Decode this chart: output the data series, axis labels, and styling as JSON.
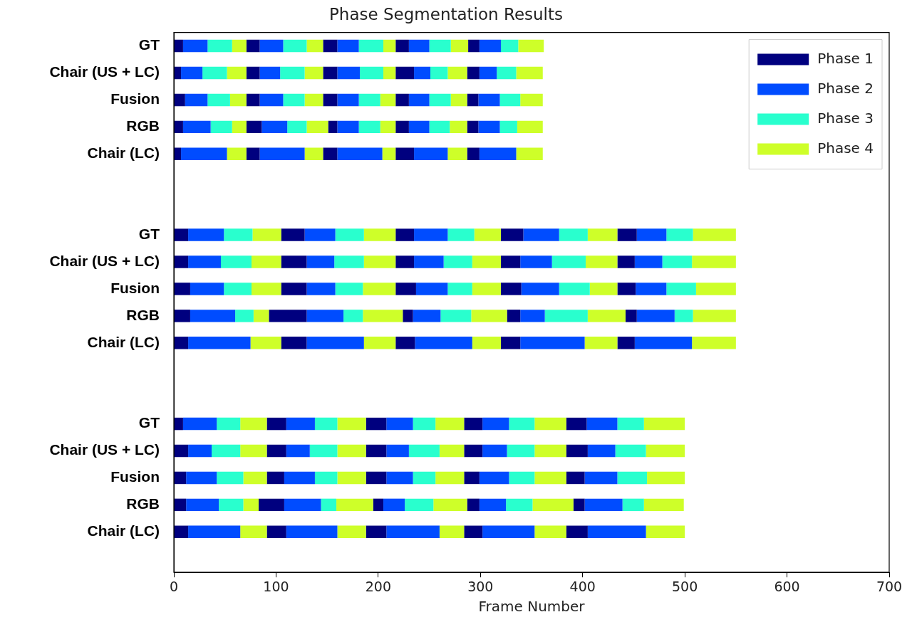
{
  "chart_data": {
    "type": "bar",
    "orientation": "horizontal",
    "stacked": true,
    "title": "Phase Segmentation Results",
    "xlabel": "Frame Number",
    "categories": [
      "GT",
      "Chair (US + LC)",
      "Fusion",
      "RGB",
      "Chair (LC)",
      null,
      null,
      "GT",
      "Chair (US + LC)",
      "Fusion",
      "RGB",
      "Chair (LC)",
      null,
      null,
      "GT",
      "Chair (US + LC)",
      "Fusion",
      "RGB",
      "Chair (LC)",
      null
    ],
    "xlim": [
      0,
      700
    ],
    "xticks": [
      0,
      100,
      200,
      300,
      400,
      500,
      600,
      700
    ],
    "grid": false,
    "legend": "top right",
    "series": [
      {
        "name": "Phase 1",
        "color": "#00007f",
        "values": [
          9,
          7,
          11,
          9,
          7,
          null,
          null,
          14,
          14,
          16,
          16,
          14,
          null,
          null,
          9,
          14,
          12,
          12,
          14,
          null
        ]
      },
      {
        "name": "Phase 2",
        "color": "#004cff",
        "values": [
          24,
          21,
          22,
          27,
          45,
          null,
          null,
          35,
          32,
          33,
          44,
          61,
          null,
          null,
          33,
          23,
          30,
          32,
          51,
          null
        ]
      },
      {
        "name": "Phase 3",
        "color": "#29ffce",
        "values": [
          24,
          24,
          22,
          21,
          null,
          null,
          null,
          28,
          30,
          27,
          18,
          null,
          null,
          null,
          23,
          28,
          26,
          24,
          null,
          null
        ]
      },
      {
        "name": "Phase 4",
        "color": "#ceff29",
        "values": [
          14,
          19,
          16,
          14,
          19,
          null,
          null,
          28,
          29,
          29,
          15,
          30,
          null,
          null,
          26,
          26,
          23,
          15,
          26,
          null
        ]
      },
      {
        "color": "#00007f",
        "values": [
          13,
          13,
          13,
          15,
          13,
          null,
          null,
          23,
          25,
          25,
          37,
          25,
          null,
          null,
          19,
          19,
          17,
          25,
          19,
          null
        ]
      },
      {
        "color": "#004cff",
        "values": [
          23,
          20,
          23,
          25,
          44,
          null,
          null,
          30,
          27,
          28,
          36,
          56,
          null,
          null,
          28,
          23,
          30,
          36,
          50,
          null
        ]
      },
      {
        "color": "#29ffce",
        "values": [
          23,
          24,
          21,
          19,
          null,
          null,
          null,
          28,
          29,
          27,
          19,
          null,
          null,
          null,
          22,
          27,
          22,
          15,
          null,
          null
        ]
      },
      {
        "color": "#ceff29",
        "values": [
          16,
          18,
          18,
          21,
          18,
          null,
          null,
          31,
          31,
          32,
          39,
          31,
          null,
          null,
          28,
          28,
          28,
          36,
          28,
          null
        ]
      },
      {
        "color": "#00007f",
        "values": [
          14,
          14,
          14,
          9,
          14,
          null,
          null,
          18,
          18,
          20,
          10,
          19,
          null,
          null,
          20,
          20,
          20,
          10,
          20,
          null
        ]
      },
      {
        "color": "#004cff",
        "values": [
          21,
          22,
          21,
          21,
          44,
          null,
          null,
          33,
          29,
          31,
          27,
          56,
          null,
          null,
          26,
          22,
          26,
          21,
          52,
          null
        ]
      },
      {
        "color": "#29ffce",
        "values": [
          24,
          23,
          21,
          21,
          null,
          null,
          null,
          26,
          28,
          24,
          30,
          null,
          null,
          null,
          22,
          30,
          22,
          28,
          null,
          null
        ]
      },
      {
        "color": "#ceff29",
        "values": [
          12,
          12,
          15,
          15,
          13,
          null,
          null,
          26,
          28,
          28,
          35,
          28,
          null,
          null,
          28,
          24,
          28,
          33,
          24,
          null
        ]
      },
      {
        "color": "#00007f",
        "values": [
          13,
          18,
          13,
          13,
          18,
          null,
          null,
          22,
          19,
          20,
          13,
          19,
          null,
          null,
          18,
          18,
          15,
          12,
          18,
          null
        ]
      },
      {
        "color": "#004cff",
        "values": [
          20,
          16,
          20,
          20,
          33,
          null,
          null,
          35,
          31,
          37,
          24,
          63,
          null,
          null,
          26,
          24,
          29,
          26,
          51,
          null
        ]
      },
      {
        "color": "#29ffce",
        "values": [
          21,
          17,
          21,
          20,
          null,
          null,
          null,
          28,
          33,
          30,
          42,
          null,
          null,
          null,
          25,
          27,
          25,
          26,
          null,
          null
        ]
      },
      {
        "color": "#ceff29",
        "values": [
          17,
          19,
          16,
          17,
          19,
          null,
          null,
          29,
          31,
          27,
          37,
          32,
          null,
          null,
          31,
          31,
          31,
          40,
          31,
          null
        ]
      },
      {
        "color": "#00007f",
        "values": [
          11,
          12,
          11,
          11,
          12,
          null,
          null,
          19,
          17,
          18,
          11,
          17,
          null,
          null,
          20,
          21,
          18,
          11,
          21,
          null
        ]
      },
      {
        "color": "#004cff",
        "values": [
          21,
          17,
          21,
          21,
          36,
          null,
          null,
          29,
          27,
          30,
          37,
          56,
          null,
          null,
          30,
          27,
          32,
          37,
          57,
          null
        ]
      },
      {
        "color": "#29ffce",
        "values": [
          17,
          19,
          20,
          17,
          null,
          null,
          null,
          26,
          29,
          29,
          18,
          null,
          null,
          null,
          26,
          30,
          29,
          21,
          null,
          null
        ]
      },
      {
        "color": "#ceff29",
        "values": [
          25,
          26,
          22,
          25,
          26,
          null,
          null,
          42,
          43,
          39,
          42,
          43,
          null,
          null,
          40,
          38,
          37,
          39,
          38,
          null
        ]
      }
    ]
  }
}
